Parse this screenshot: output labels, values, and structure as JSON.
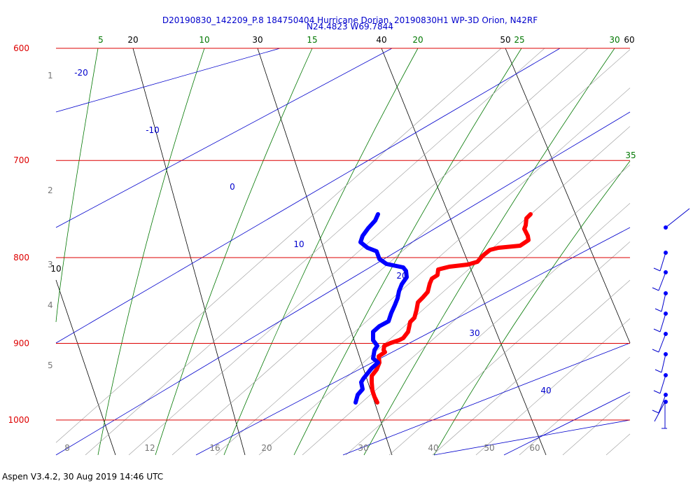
{
  "chart_data": {
    "type": "line",
    "title_line1": "D20190830_142209_P.8 184750404 Hurricane Dorian, 20190830H1 WP-3D Orion, N42RF",
    "title_line2": "N24.4823 W69.7844",
    "pressure_labels": [
      "600",
      "700",
      "800",
      "900",
      "1000"
    ],
    "pressure_levels": [
      600,
      700,
      800,
      900,
      1000
    ],
    "height_labels": [
      "1",
      "2",
      "3",
      "4",
      "5"
    ],
    "bottom_tick_labels": [
      "8",
      "12",
      "16",
      "20",
      "30",
      "40",
      "50",
      "60"
    ],
    "dry_adiabat_labels": [
      "20",
      "30",
      "40",
      "50",
      "60",
      "10"
    ],
    "moist_adiabat_labels": [
      "5",
      "10",
      "15",
      "20",
      "25",
      "30",
      "35"
    ],
    "isotherm_labels": [
      "-20",
      "-10",
      "0",
      "10",
      "20",
      "30",
      "40"
    ],
    "series": [
      {
        "name": "",
        "color": "#ff0000",
        "points": [
          [
            758,
            306
          ],
          [
            752,
            312
          ],
          [
            751,
            322
          ],
          [
            749,
            327
          ],
          [
            754,
            337
          ],
          [
            755,
            343
          ],
          [
            743,
            351
          ],
          [
            712,
            354
          ],
          [
            700,
            357
          ],
          [
            690,
            365
          ],
          [
            682,
            374
          ],
          [
            668,
            378
          ],
          [
            642,
            381
          ],
          [
            626,
            385
          ],
          [
            625,
            393
          ],
          [
            617,
            398
          ],
          [
            614,
            405
          ],
          [
            611,
            417
          ],
          [
            604,
            425
          ],
          [
            597,
            432
          ],
          [
            595,
            443
          ],
          [
            592,
            454
          ],
          [
            586,
            460
          ],
          [
            583,
            474
          ],
          [
            576,
            483
          ],
          [
            570,
            486
          ],
          [
            558,
            490
          ],
          [
            549,
            494
          ],
          [
            548,
            500
          ],
          [
            550,
            503
          ],
          [
            541,
            509
          ],
          [
            542,
            518
          ],
          [
            538,
            528
          ],
          [
            531,
            537
          ],
          [
            531,
            546
          ],
          [
            532,
            558
          ],
          [
            535,
            567
          ],
          [
            539,
            575
          ]
        ]
      },
      {
        "name": "",
        "color": "#0000ff",
        "points": [
          [
            540,
            306
          ],
          [
            536,
            315
          ],
          [
            526,
            326
          ],
          [
            518,
            337
          ],
          [
            515,
            346
          ],
          [
            525,
            354
          ],
          [
            538,
            359
          ],
          [
            542,
            370
          ],
          [
            552,
            377
          ],
          [
            576,
            382
          ],
          [
            580,
            387
          ],
          [
            581,
            396
          ],
          [
            574,
            406
          ],
          [
            570,
            416
          ],
          [
            568,
            426
          ],
          [
            564,
            436
          ],
          [
            559,
            447
          ],
          [
            555,
            459
          ],
          [
            542,
            466
          ],
          [
            533,
            474
          ],
          [
            533,
            486
          ],
          [
            539,
            494
          ],
          [
            535,
            500
          ],
          [
            533,
            512
          ],
          [
            540,
            518
          ],
          [
            531,
            526
          ],
          [
            519,
            541
          ],
          [
            516,
            546
          ],
          [
            518,
            556
          ],
          [
            511,
            564
          ],
          [
            508,
            575
          ]
        ]
      }
    ],
    "wind_barbs": [
      325,
      361,
      389,
      419,
      448,
      477,
      506,
      536,
      564,
      574
    ],
    "xlim": [
      -40,
      40
    ],
    "ylim": [
      1050,
      600
    ]
  },
  "footer": {
    "text": "Aspen V3.4.2, 30 Aug 2019  14:46 UTC"
  }
}
